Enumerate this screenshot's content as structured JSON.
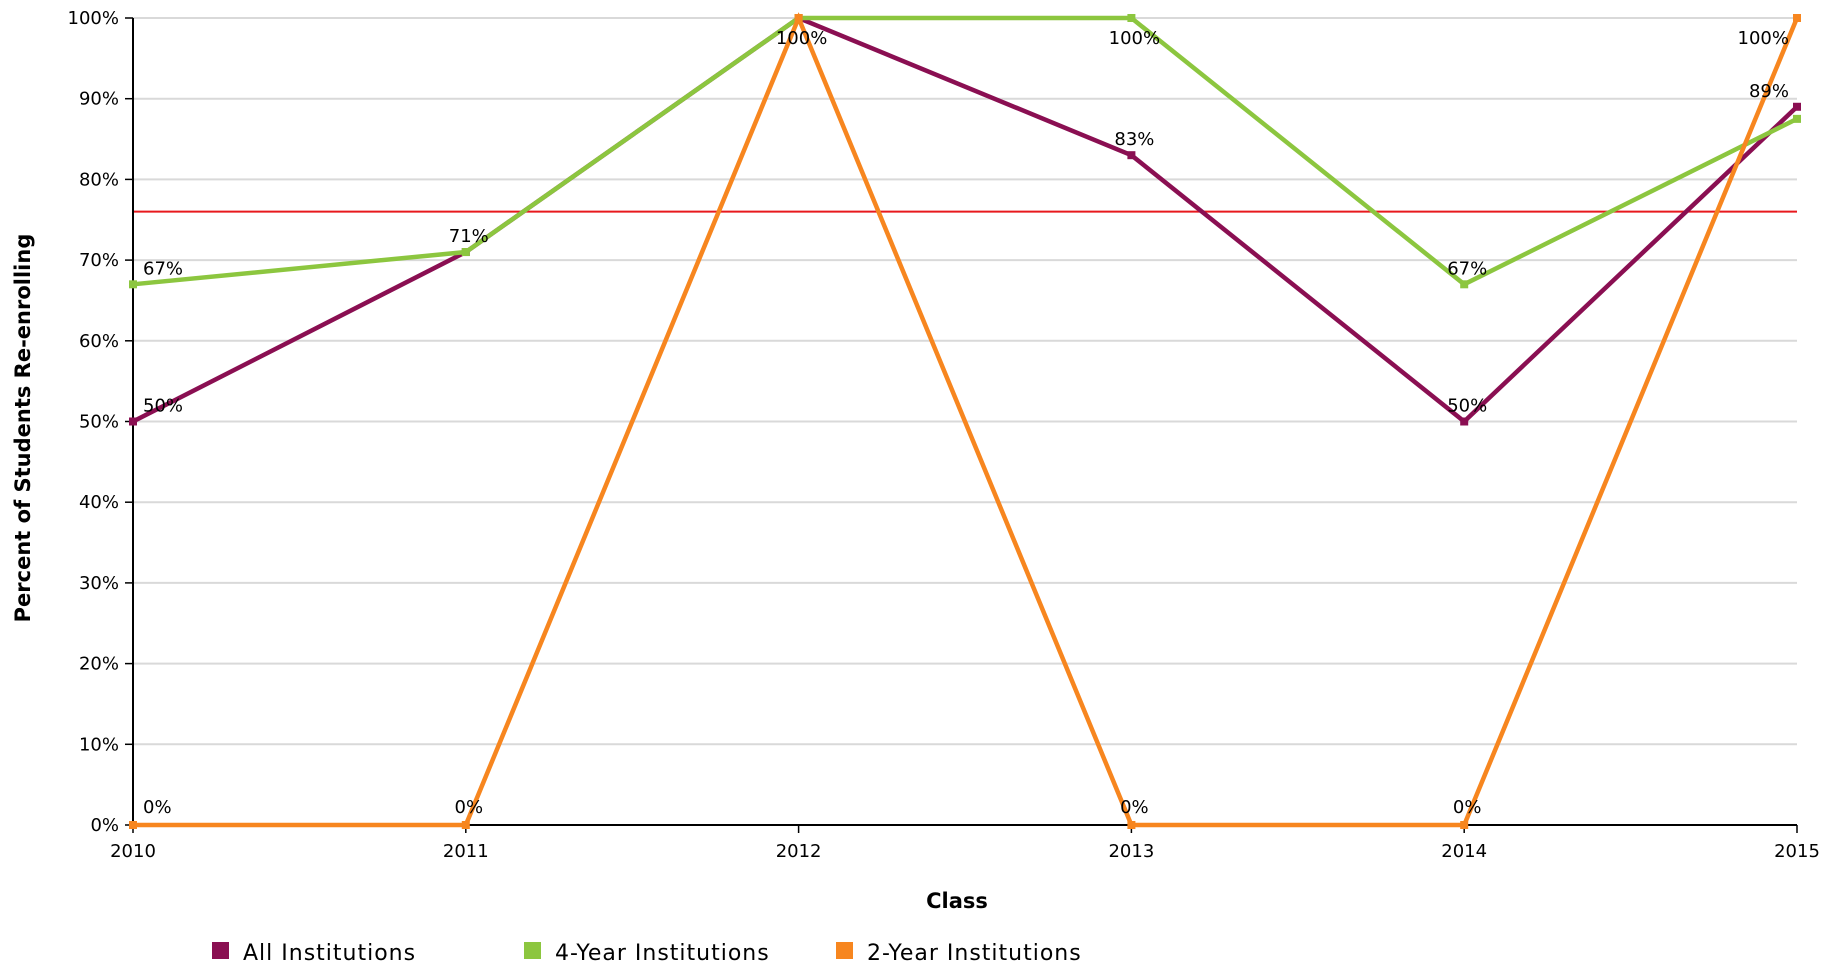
{
  "chart_data": {
    "type": "line",
    "title": "",
    "xlabel": "Class",
    "ylabel": "Percent of Students Re-enrolling",
    "categories": [
      "2010",
      "2011",
      "2012",
      "2013",
      "2014",
      "2015"
    ],
    "ylim": [
      0,
      100
    ],
    "yticks": [
      "0%",
      "10%",
      "20%",
      "30%",
      "40%",
      "50%",
      "60%",
      "70%",
      "80%",
      "90%",
      "100%"
    ],
    "grid": true,
    "legend_position": "bottom-left",
    "reference_line": {
      "value": 76,
      "color": "#e8191d"
    },
    "series": [
      {
        "name": "All Institutions",
        "color": "#8a0f52",
        "values": [
          50,
          71,
          100,
          83,
          50,
          89
        ],
        "labels": [
          "50%",
          "",
          "",
          "83%",
          "50%",
          "89%"
        ]
      },
      {
        "name": "4-Year Institutions",
        "color": "#8cc63f",
        "values": [
          67,
          71,
          100,
          100,
          67,
          87.5
        ],
        "labels": [
          "67%",
          "71%",
          "",
          "100%",
          "67%",
          ""
        ]
      },
      {
        "name": "2-Year Institutions",
        "color": "#f7861f",
        "values": [
          0,
          0,
          100,
          0,
          0,
          100
        ],
        "labels": [
          "0%",
          "0%",
          "100%",
          "0%",
          "0%",
          "100%"
        ]
      }
    ]
  }
}
